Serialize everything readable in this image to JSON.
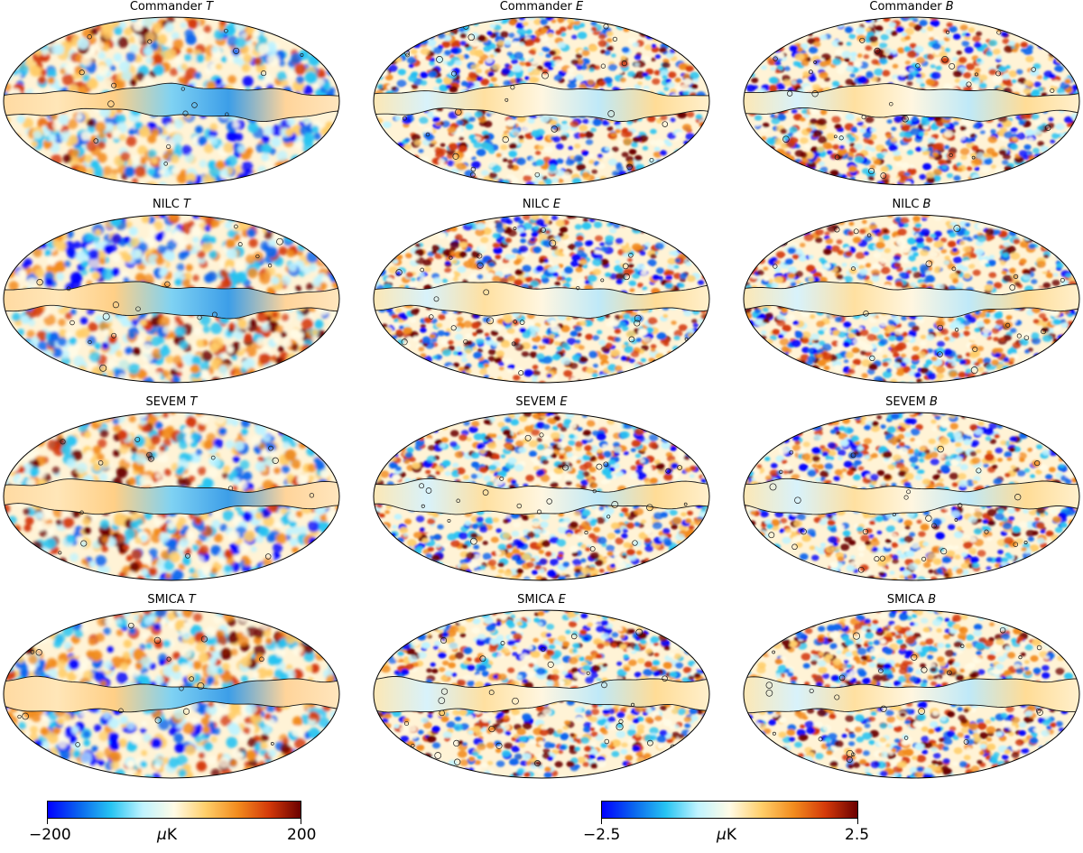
{
  "maps": [
    {
      "method": "Commander",
      "component": "T",
      "scale": "temperature"
    },
    {
      "method": "Commander",
      "component": "E",
      "scale": "polarization"
    },
    {
      "method": "Commander",
      "component": "B",
      "scale": "polarization"
    },
    {
      "method": "NILC",
      "component": "T",
      "scale": "temperature"
    },
    {
      "method": "NILC",
      "component": "E",
      "scale": "polarization"
    },
    {
      "method": "NILC",
      "component": "B",
      "scale": "polarization"
    },
    {
      "method": "SEVEM",
      "component": "T",
      "scale": "temperature"
    },
    {
      "method": "SEVEM",
      "component": "E",
      "scale": "polarization"
    },
    {
      "method": "SEVEM",
      "component": "B",
      "scale": "polarization"
    },
    {
      "method": "SMICA",
      "component": "T",
      "scale": "temperature"
    },
    {
      "method": "SMICA",
      "component": "E",
      "scale": "polarization"
    },
    {
      "method": "SMICA",
      "component": "B",
      "scale": "polarization"
    }
  ],
  "colorbars": {
    "temperature": {
      "min_label": "−200",
      "max_label": "200",
      "unit_prefix": "μ",
      "unit": "K"
    },
    "polarization": {
      "min_label": "−2.5",
      "max_label": "2.5",
      "unit_prefix": "μ",
      "unit": "K"
    }
  },
  "colormap": [
    "#0000ff",
    "#0a66ee",
    "#27c4f2",
    "#bff3ff",
    "#fffbe6",
    "#ffce6a",
    "#f28c1e",
    "#d43a0a",
    "#6b0000"
  ]
}
